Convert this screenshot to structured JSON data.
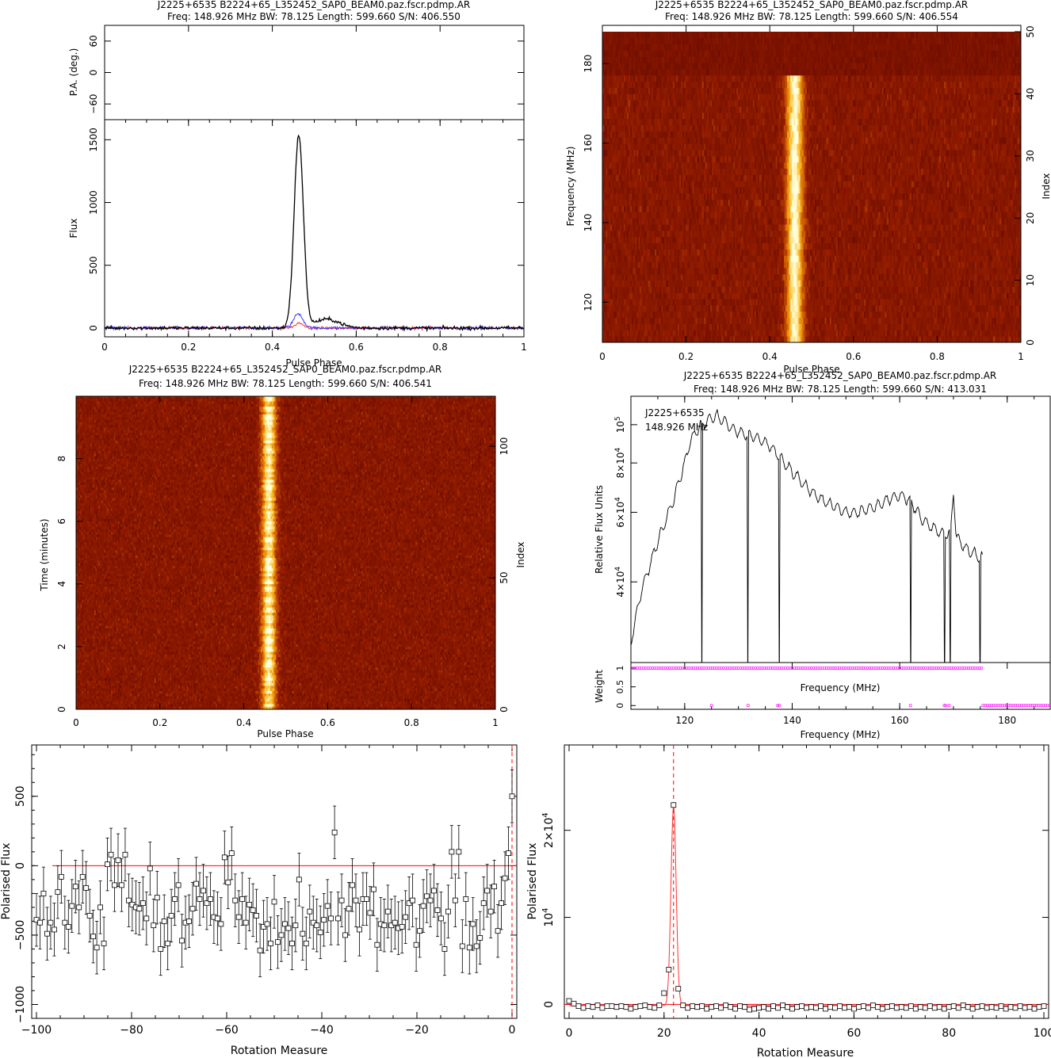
{
  "panels": {
    "profile": {
      "title": "J2225+6535  B2224+65_L352452_SAP0_BEAM0.paz.fscr.pdmp.AR",
      "subtitle": "Freq:  148.926  MHz  BW:  78.125  Length:  599.660  S/N:  406.550"
    },
    "freq_phase": {
      "title": "J2225+6535  B2224+65_L352452_SAP0_BEAM0.paz.fscr.pdmp.AR",
      "subtitle": "Freq:  148.926  MHz  BW:  78.125  Length:  599.660  S/N:  406.554"
    },
    "time_phase": {
      "title": "J2225+6535  B2224+65_L352452_SAP0_BEAM0.paz.fscr.pdmp.AR",
      "subtitle": "Freq:  148.926  MHz  BW:  78.125  Length:  599.660  S/N:  406.541"
    },
    "bandpass": {
      "title": "J2225+6535  B2224+65_L352452_SAP0_BEAM0.paz.fscr.pdmp.AR",
      "subtitle": "Freq:  148.926  MHz  BW:  78.125  Length:  599.660  S/N:  413.031",
      "annot_name": "J2225+6535",
      "annot_freq": "148.926 MHz"
    }
  },
  "chart_data": [
    {
      "id": "pa",
      "type": "scatter",
      "ylabel": "P.A. (deg.)",
      "yticks": [
        "60",
        "0",
        "−60"
      ],
      "ylim": [
        -90,
        90
      ],
      "xlim": [
        0,
        1
      ]
    },
    {
      "id": "profile",
      "type": "line",
      "xlabel": "Pulse Phase",
      "ylabel": "Flux",
      "xlim": [
        0,
        1
      ],
      "ylim": [
        -70,
        1660
      ],
      "xticks": [
        "0",
        "0.2",
        "0.4",
        "0.6",
        "0.8",
        "1"
      ],
      "yticks": [
        "0",
        "500",
        "1000",
        "1500"
      ],
      "series": [
        {
          "color": "#000000",
          "peak_phase": 0.463,
          "peak": 1535,
          "width": 0.011
        },
        {
          "color": "#3333ff",
          "peak_phase": 0.462,
          "peak": 115,
          "width": 0.011
        },
        {
          "color": "#ff3333",
          "peak_phase": 0.464,
          "peak": 40,
          "width": 0.009
        }
      ]
    },
    {
      "id": "freq_phase",
      "type": "heatmap",
      "xlabel": "Pulse Phase",
      "ylabel": "Frequency (MHz)",
      "ylabel2": "Index",
      "xlim": [
        0,
        1
      ],
      "ylim": [
        109.9,
        188.0
      ],
      "ylim2": [
        0,
        50
      ],
      "xticks": [
        "0",
        "0.2",
        "0.4",
        "0.6",
        "0.8",
        "1"
      ],
      "yticks": [
        "120",
        "140",
        "160",
        "180"
      ],
      "yticks2": [
        "0",
        "10",
        "20",
        "30",
        "40",
        "50"
      ],
      "pulse_phase": 0.46,
      "signal_freq_range": [
        110,
        177
      ]
    },
    {
      "id": "time_phase",
      "type": "heatmap",
      "xlabel": "Pulse Phase",
      "ylabel": "Time (minutes)",
      "ylabel2": "Index",
      "xlim": [
        0,
        1
      ],
      "ylim": [
        0,
        9.99
      ],
      "ylim2": [
        0,
        119
      ],
      "xticks": [
        "0",
        "0.2",
        "0.4",
        "0.6",
        "0.8",
        "1"
      ],
      "yticks": [
        "0",
        "2",
        "4",
        "6",
        "8"
      ],
      "yticks2": [
        "0",
        "50",
        "100"
      ],
      "pulse_phase": 0.46
    },
    {
      "id": "bandpass",
      "type": "line",
      "xlabel": "Frequency (MHz)",
      "ylabel": "Relative Flux Units",
      "xlim": [
        110,
        188
      ],
      "ylim": [
        25000,
        118000
      ],
      "xticks": [
        "120",
        "140",
        "160",
        "180"
      ],
      "yticks": [
        {
          "m": "4",
          "v": 40000
        },
        {
          "m": "6",
          "v": 60000
        },
        {
          "m": "8",
          "v": 80000
        }
      ],
      "ytick_top": "10",
      "points": [
        [
          110.0,
          28000
        ],
        [
          112.0,
          38000
        ],
        [
          114.0,
          46000
        ],
        [
          116.0,
          55000
        ],
        [
          118.0,
          65000
        ],
        [
          120.0,
          80000
        ],
        [
          121.0,
          90000
        ],
        [
          122.0,
          96000
        ],
        [
          123.0,
          99000
        ],
        [
          124.0,
          102000
        ],
        [
          125.0,
          104000
        ],
        [
          126.0,
          105000
        ],
        [
          127.0,
          103000
        ],
        [
          128.0,
          100000
        ],
        [
          129.0,
          97000
        ],
        [
          130.0,
          96000
        ],
        [
          132.0,
          94000
        ],
        [
          134.0,
          92000
        ],
        [
          136.0,
          88000
        ],
        [
          138.0,
          82000
        ],
        [
          140.0,
          76000
        ],
        [
          142.0,
          71000
        ],
        [
          144.0,
          67000
        ],
        [
          146.0,
          64000
        ],
        [
          148.0,
          62000
        ],
        [
          150.0,
          60000
        ],
        [
          152.0,
          60000
        ],
        [
          154.0,
          61000
        ],
        [
          156.0,
          62500
        ],
        [
          158.0,
          65000
        ],
        [
          160.0,
          66000
        ],
        [
          161.0,
          65500
        ],
        [
          162.0,
          64000
        ],
        [
          164.0,
          58000
        ],
        [
          166.0,
          55000
        ],
        [
          168.0,
          53000
        ],
        [
          169.5,
          53000
        ],
        [
          170.0,
          68000
        ],
        [
          170.5,
          52000
        ],
        [
          172.0,
          49000
        ],
        [
          174.0,
          47000
        ],
        [
          175.4,
          46000
        ]
      ],
      "dropouts": [
        123.2,
        131.8,
        137.6,
        162.0,
        168.4,
        169.4,
        175.0,
        175.5
      ]
    },
    {
      "id": "weights",
      "type": "scatter",
      "xlabel": "Frequency (MHz)",
      "ylabel": "Weight",
      "xlim": [
        110,
        188
      ],
      "ylim": [
        -0.1,
        1.15
      ],
      "yticks": [
        "0",
        "0.5",
        "1"
      ],
      "zero_weight_freqs": [
        125.0,
        131.8,
        137.3,
        137.6,
        162.0,
        168.3,
        168.6,
        169.2
      ],
      "zero_weight_range": [
        175.5,
        188.0
      ],
      "one_weight_range": [
        110.0,
        175.3
      ],
      "color": "#ff22ff"
    },
    {
      "id": "rm_neg",
      "type": "scatter",
      "xlabel": "Rotation Measure",
      "ylabel": "Polarised Flux",
      "xlim": [
        -101,
        1
      ],
      "ylim": [
        -1100,
        870
      ],
      "xticks": [
        "−100",
        "−80",
        "−60",
        "−40",
        "−20",
        "0"
      ],
      "yticks": [
        "−1000",
        "−500",
        "0",
        "500"
      ],
      "best_rm": 0,
      "errorbar": 190,
      "values": [
        -390,
        -410,
        -200,
        -490,
        -410,
        -460,
        -190,
        -80,
        -410,
        -440,
        -290,
        -150,
        -300,
        -80,
        -160,
        -360,
        -510,
        -590,
        -300,
        -560,
        10,
        80,
        -140,
        40,
        -140,
        80,
        -250,
        -280,
        -300,
        -310,
        -270,
        -380,
        -20,
        -430,
        -230,
        -600,
        -400,
        -560,
        -360,
        -240,
        -140,
        -540,
        -410,
        -400,
        -310,
        -130,
        -240,
        -180,
        -270,
        -240,
        -370,
        -380,
        -420,
        60,
        -120,
        90,
        -250,
        -370,
        -240,
        -410,
        -280,
        -320,
        -360,
        -610,
        -440,
        -420,
        -560,
        -260,
        -550,
        -500,
        -420,
        -450,
        -560,
        -430,
        -100,
        -490,
        -560,
        -330,
        -410,
        -430,
        -480,
        -390,
        -290,
        -380,
        240,
        -380,
        -250,
        -500,
        -310,
        -140,
        -250,
        -460,
        -240,
        -240,
        -340,
        -170,
        -570,
        -420,
        -430,
        -330,
        -430,
        -410,
        -450,
        -440,
        -370,
        -270,
        -250,
        -570,
        -470,
        -290,
        -220,
        -250,
        -180,
        -320,
        -380,
        -600,
        -330,
        100,
        -250,
        100,
        -580,
        -240,
        -590,
        -420,
        -580,
        -520,
        -270,
        -180,
        -330,
        -150,
        -470,
        -270,
        -90,
        90,
        500
      ]
    },
    {
      "id": "rm_pos",
      "type": "scatter",
      "xlabel": "Rotation Measure",
      "ylabel": "Polarised Flux",
      "xlim": [
        -1,
        101
      ],
      "ylim": [
        -1600,
        29800
      ],
      "xticks": [
        "0",
        "20",
        "40",
        "60",
        "80",
        "100"
      ],
      "yticks": [
        {
          "label": "0",
          "v": 0
        },
        {
          "label": "10",
          "sup": "4",
          "v": 10000
        },
        {
          "label": "2×10",
          "sup": "4",
          "v": 20000
        }
      ],
      "best_rm": 22,
      "rm_values": [
        0,
        1,
        2,
        3,
        4,
        5,
        6,
        7,
        8,
        9,
        10,
        11,
        12,
        13,
        14,
        15,
        16,
        17,
        18,
        19,
        20,
        21,
        22,
        23,
        24,
        25,
        26,
        27,
        28,
        29,
        30,
        31,
        32,
        33,
        34,
        35,
        36,
        37,
        38,
        39,
        40,
        41,
        42,
        43,
        44,
        45,
        46,
        47,
        48,
        49,
        50,
        51,
        52,
        53,
        54,
        55,
        56,
        57,
        58,
        59,
        60,
        61,
        62,
        63,
        64,
        65,
        66,
        67,
        68,
        69,
        70,
        71,
        72,
        73,
        74,
        75,
        76,
        77,
        78,
        79,
        80,
        81,
        82,
        83,
        84,
        85,
        86,
        87,
        88,
        89,
        90,
        91,
        92,
        93,
        94,
        95,
        96,
        97,
        98,
        99,
        100
      ],
      "values": [
        400,
        100,
        -200,
        -400,
        -200,
        -300,
        -100,
        -400,
        -200,
        -200,
        -300,
        -200,
        -300,
        -500,
        -300,
        -200,
        -100,
        -300,
        -400,
        -100,
        1300,
        4000,
        22900,
        1800,
        -100,
        -400,
        -200,
        -300,
        -200,
        -500,
        -300,
        -200,
        -400,
        -100,
        -300,
        -500,
        -200,
        -300,
        -600,
        -500,
        -400,
        -300,
        -500,
        -200,
        -400,
        -100,
        -300,
        -500,
        -300,
        -200,
        -400,
        -300,
        -400,
        -200,
        -500,
        -300,
        -400,
        -200,
        -400,
        -300,
        -500,
        -300,
        -200,
        -400,
        -100,
        -300,
        -500,
        -300,
        -200,
        -400,
        -300,
        -400,
        -200,
        -500,
        -300,
        -400,
        -200,
        -400,
        -300,
        -500,
        -300,
        -200,
        -400,
        -100,
        -300,
        -500,
        -300,
        -200,
        -400,
        -300,
        -400,
        -200,
        -500,
        -300,
        -400,
        -200,
        -400,
        -300,
        -500,
        -300,
        -200
      ]
    }
  ]
}
